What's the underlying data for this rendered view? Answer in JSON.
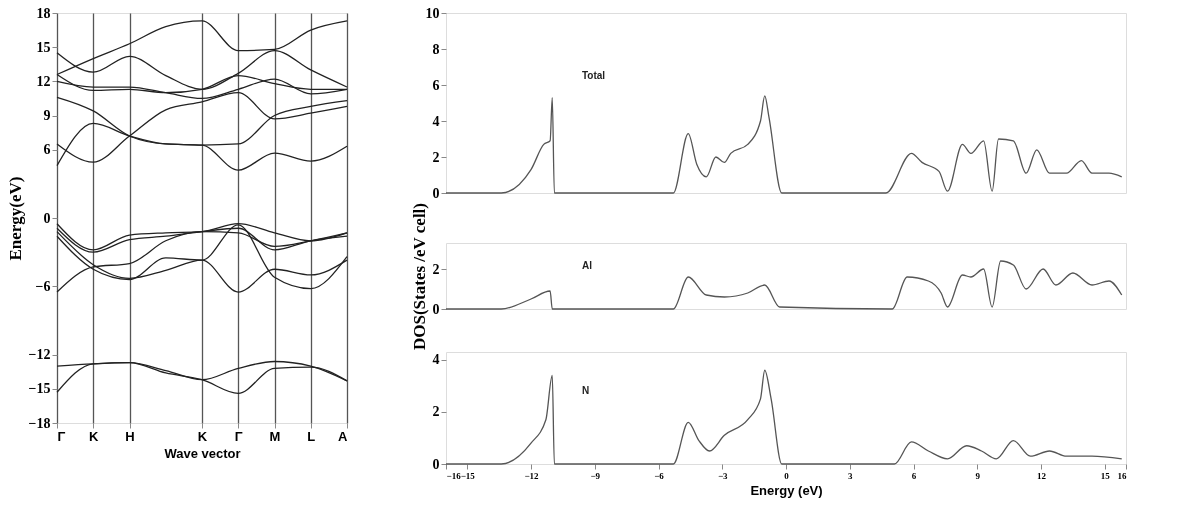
{
  "chart_data": [
    {
      "type": "line",
      "xlabel": "Wave vector",
      "ylabel": "Energy(eV)",
      "categories": [
        "Γ",
        "K",
        "H",
        null,
        "K",
        "Γ",
        "M",
        "L",
        "A"
      ],
      "ylim": [
        -18,
        18
      ],
      "yticks": [
        -18,
        -15,
        -12,
        -6,
        0,
        6,
        9,
        12,
        15,
        18
      ],
      "grid": "x",
      "series": [
        {
          "color": "#222222",
          "values": [
            -15.3,
            -12.8,
            -12.7,
            -13.6,
            -14.2,
            -15.4,
            -13.2,
            -13.1,
            -14.3
          ]
        },
        {
          "color": "#222222",
          "values": [
            -13.0,
            -12.8,
            -12.7,
            -13.4,
            -14.2,
            -13.2,
            -12.6,
            -13.0,
            -14.3
          ]
        },
        {
          "color": "#222222",
          "values": [
            -0.5,
            -2.8,
            -1.5,
            -1.3,
            -1.2,
            -0.5,
            -1.3,
            -2.0,
            -1.3
          ]
        },
        {
          "color": "#222222",
          "values": [
            -1.2,
            -4.1,
            -5.3,
            -4.6,
            -3.7,
            -6.5,
            -4.5,
            -5.0,
            -3.7
          ]
        },
        {
          "color": "#222222",
          "values": [
            -6.5,
            -4.3,
            -4.0,
            -2.0,
            -1.2,
            -1.3,
            -2.5,
            -2.0,
            -1.3
          ]
        },
        {
          "color": "#222222",
          "values": [
            -1.6,
            -4.5,
            -5.4,
            -3.5,
            -3.7,
            -0.6,
            -5.2,
            -6.2,
            -3.4
          ]
        },
        {
          "color": "#222222",
          "values": [
            -0.9,
            -3.0,
            -1.9,
            -1.6,
            -1.2,
            -0.9,
            -2.8,
            -2.0,
            -1.6
          ]
        },
        {
          "color": "#222222",
          "values": [
            4.6,
            8.3,
            7.2,
            6.5,
            6.4,
            6.5,
            9.0,
            9.8,
            10.3
          ]
        },
        {
          "color": "#222222",
          "values": [
            6.5,
            4.9,
            7.2,
            9.5,
            10.2,
            11.0,
            8.7,
            9.2,
            9.8
          ]
        },
        {
          "color": "#222222",
          "values": [
            10.6,
            9.4,
            7.2,
            6.5,
            6.4,
            4.2,
            5.7,
            5.0,
            6.3
          ]
        },
        {
          "color": "#222222",
          "values": [
            12.6,
            11.2,
            11.3,
            11.0,
            11.3,
            12.5,
            11.8,
            11.3,
            11.3
          ]
        },
        {
          "color": "#222222",
          "values": [
            14.5,
            12.8,
            14.2,
            12.5,
            11.3,
            12.7,
            14.7,
            13.0,
            11.5
          ]
        },
        {
          "color": "#222222",
          "values": [
            12.6,
            14.0,
            15.3,
            16.8,
            17.3,
            14.7,
            14.8,
            16.5,
            17.3
          ]
        },
        {
          "color": "#222222",
          "values": [
            12.0,
            11.5,
            11.5,
            11.0,
            10.5,
            11.3,
            12.2,
            10.9,
            11.3
          ]
        }
      ]
    },
    {
      "type": "line",
      "xlim": [
        -16,
        16
      ],
      "xticks": [
        -16,
        -15,
        -12,
        -9,
        -6,
        -3,
        0,
        3,
        6,
        9,
        12,
        15,
        16
      ],
      "ylim": [
        0,
        10
      ],
      "yticks": [
        0,
        2,
        4,
        6,
        8,
        10
      ],
      "tick_labels": "y",
      "series": [
        {
          "name": "Total",
          "color": "#555555",
          "x": [
            -16,
            -13.4,
            -12.0,
            -11.4,
            -11.1,
            -11.0,
            -10.9,
            -5.3,
            -4.6,
            -4.2,
            -3.75,
            -3.3,
            -2.9,
            -2.6,
            -1.8,
            -1.2,
            -1.0,
            -0.8,
            -0.2,
            4.7,
            5.9,
            6.4,
            7.2,
            7.6,
            8.3,
            8.7,
            9.3,
            9.7,
            10.0,
            10.7,
            11.3,
            11.8,
            12.4,
            13.2,
            13.9,
            14.4,
            15.2,
            15.8
          ],
          "values": [
            0,
            0,
            1.3,
            2.7,
            2.9,
            5.3,
            0,
            0,
            3.3,
            1.6,
            0.9,
            2.0,
            1.7,
            2.2,
            2.7,
            4.0,
            5.4,
            4.2,
            0,
            0,
            2.2,
            1.7,
            1.2,
            0.1,
            2.7,
            2.2,
            2.9,
            0.1,
            3.0,
            2.9,
            1.1,
            2.4,
            1.1,
            1.1,
            1.8,
            1.1,
            1.1,
            0.9
          ]
        }
      ]
    },
    {
      "type": "line",
      "xlim": [
        -16,
        16
      ],
      "xticks": [
        -16,
        -15,
        -12,
        -9,
        -6,
        -3,
        0,
        3,
        6,
        9,
        12,
        15,
        16
      ],
      "ylim": [
        0,
        3.3
      ],
      "yticks": [
        0,
        2
      ],
      "tick_labels": "y",
      "ylabel": "DOS(States /eV cell)",
      "series": [
        {
          "name": "Al",
          "color": "#555555",
          "x": [
            -16,
            -13.4,
            -12.0,
            -11.1,
            -11.0,
            -5.3,
            -4.6,
            -3.75,
            -2.9,
            -1.8,
            -1.0,
            -0.3,
            5.0,
            5.7,
            6.7,
            7.3,
            7.6,
            8.3,
            8.7,
            9.3,
            9.7,
            10.1,
            10.7,
            11.3,
            12.1,
            12.7,
            13.5,
            14.4,
            15.2,
            15.8
          ],
          "values": [
            0,
            0,
            0.5,
            0.9,
            0,
            0,
            1.6,
            0.7,
            0.6,
            0.8,
            1.2,
            0.1,
            0,
            1.6,
            1.4,
            0.8,
            0.1,
            1.7,
            1.6,
            2.0,
            0.1,
            2.4,
            2.2,
            1.0,
            2.0,
            1.2,
            1.8,
            1.2,
            1.4,
            0.7
          ]
        }
      ]
    },
    {
      "type": "line",
      "xlabel": "Energy (eV)",
      "xlim": [
        -16,
        16
      ],
      "xticks": [
        -16,
        -15,
        -12,
        -9,
        -6,
        -3,
        0,
        3,
        6,
        9,
        12,
        15,
        16
      ],
      "ylim": [
        0,
        4.3
      ],
      "yticks": [
        0,
        2,
        4
      ],
      "series": [
        {
          "name": "N",
          "color": "#555555",
          "x": [
            -16,
            -13.4,
            -12.0,
            -11.3,
            -11.0,
            -10.9,
            -5.3,
            -4.6,
            -4.1,
            -3.6,
            -2.9,
            -1.8,
            -1.2,
            -1.0,
            -0.7,
            -0.2,
            5.1,
            5.9,
            6.7,
            7.6,
            8.5,
            9.2,
            9.9,
            10.7,
            11.5,
            12.4,
            13.2,
            14.4,
            15.8
          ],
          "values": [
            0,
            0,
            0.8,
            1.7,
            3.4,
            0,
            0,
            1.6,
            0.9,
            0.5,
            1.1,
            1.7,
            2.5,
            3.6,
            2.5,
            0,
            0,
            0.85,
            0.5,
            0.2,
            0.7,
            0.5,
            0.2,
            0.9,
            0.3,
            0.5,
            0.3,
            0.3,
            0.2
          ]
        }
      ]
    }
  ]
}
